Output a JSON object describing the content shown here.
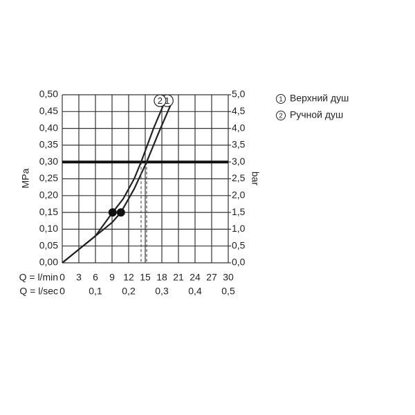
{
  "chart_data": {
    "type": "line",
    "ylabel": "MPa",
    "y2label": "bar",
    "xlabel": "Q = l/min",
    "x2label": "Q = l/sec",
    "xlim": [
      0,
      30
    ],
    "xticks": [
      0,
      3,
      6,
      9,
      12,
      15,
      18,
      21,
      24,
      27,
      30
    ],
    "x2lim": [
      0,
      0.5
    ],
    "x2ticks": [
      0,
      {
        "value": 0.1,
        "label": "0,1"
      },
      {
        "value": 0.2,
        "label": "0,2"
      },
      {
        "value": 0.3,
        "label": "0,3"
      },
      {
        "value": 0.4,
        "label": "0,4"
      },
      {
        "value": 0.5,
        "label": "0,5"
      }
    ],
    "ylim": [
      0,
      0.5
    ],
    "yticks": [
      {
        "value": 0,
        "label": "0,00"
      },
      {
        "value": 0.05,
        "label": "0,05"
      },
      {
        "value": 0.1,
        "label": "0,10"
      },
      {
        "value": 0.15,
        "label": "0,15"
      },
      {
        "value": 0.2,
        "label": "0,20"
      },
      {
        "value": 0.25,
        "label": "0,25"
      },
      {
        "value": 0.3,
        "label": "0,30"
      },
      {
        "value": 0.35,
        "label": "0,35"
      },
      {
        "value": 0.4,
        "label": "0,40"
      },
      {
        "value": 0.45,
        "label": "0,45"
      },
      {
        "value": 0.5,
        "label": "0,50"
      }
    ],
    "y2lim": [
      0,
      5
    ],
    "y2ticks": [
      {
        "value": 0,
        "label": "0,0"
      },
      {
        "value": 0.5,
        "label": "0,5"
      },
      {
        "value": 1,
        "label": "1,0"
      },
      {
        "value": 1.5,
        "label": "1,5"
      },
      {
        "value": 2,
        "label": "2,0"
      },
      {
        "value": 2.5,
        "label": "2,5"
      },
      {
        "value": 3,
        "label": "3,0"
      },
      {
        "value": 3.5,
        "label": "3,5"
      },
      {
        "value": 4,
        "label": "4,0"
      },
      {
        "value": 4.5,
        "label": "4,5"
      },
      {
        "value": 5,
        "label": "5,0"
      }
    ],
    "grid": true,
    "reference_value": 0.3,
    "series": [
      {
        "label": "1",
        "name": "Верхний душ",
        "color": "#222222",
        "x": [
          0,
          3,
          6,
          9,
          10.6,
          13,
          15.25,
          17.5,
          19.6
        ],
        "values": [
          0,
          0.04,
          0.08,
          0.12,
          0.15,
          0.22,
          0.3,
          0.39,
          0.47
        ],
        "point": [
          10.6,
          0.15
        ],
        "reading": 15.25
      },
      {
        "label": "2",
        "name": "Ручной душ",
        "color": "#222222",
        "x": [
          0,
          3,
          6,
          9.1,
          11,
          13,
          14.25,
          16.5,
          18.3
        ],
        "values": [
          0,
          0.04,
          0.08,
          0.15,
          0.19,
          0.25,
          0.3,
          0.4,
          0.47
        ],
        "point": [
          9.1,
          0.15
        ],
        "reading": 14.25
      }
    ]
  }
}
